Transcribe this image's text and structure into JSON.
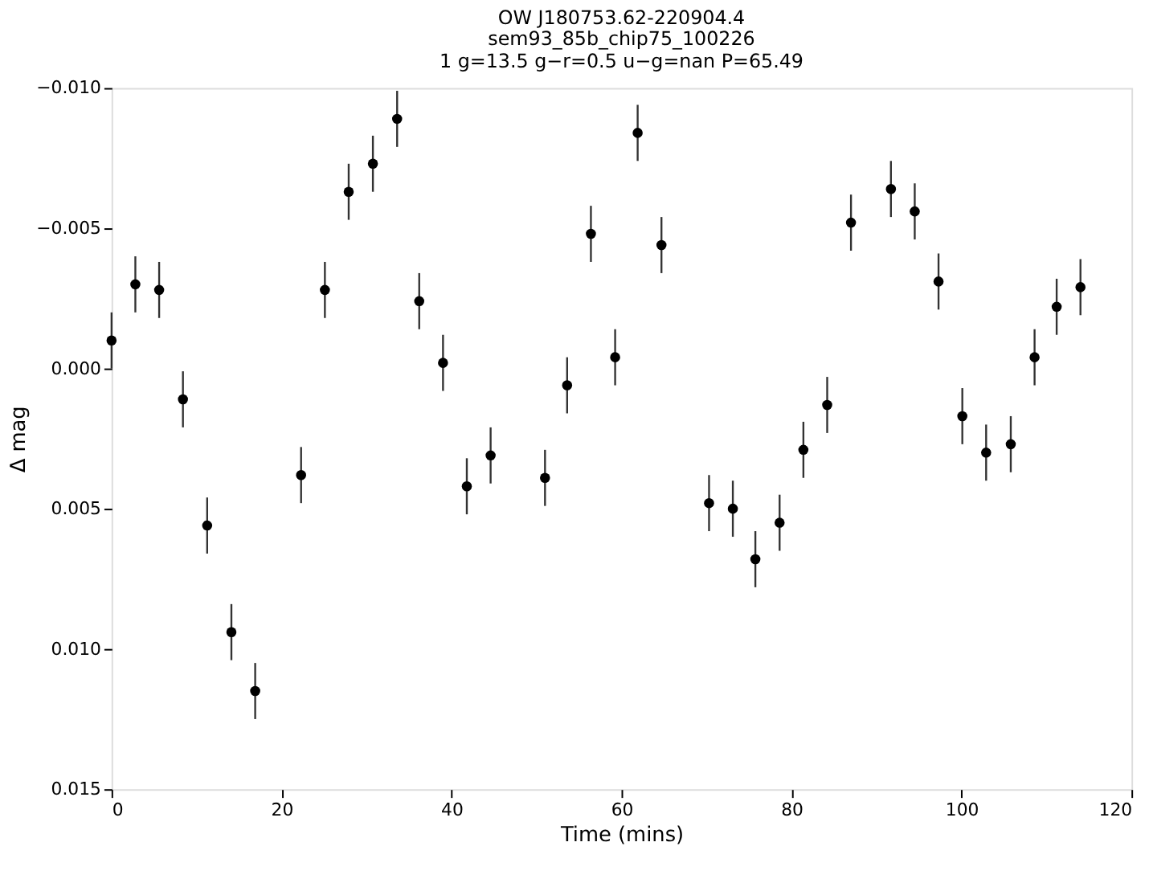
{
  "chart_data": {
    "type": "scatter",
    "title": "OW J180753.62-220904.4",
    "subtitle": "sem93_85b_chip75_100226\n1 g=13.5 g−r=0.5 u−g=nan P=65.49",
    "xlabel": "Time (mins)",
    "ylabel": "Δ mag",
    "x": [
      0,
      2.8,
      5.6,
      8.4,
      11.25,
      14.1,
      16.9,
      22.3,
      25.1,
      27.9,
      30.75,
      33.6,
      36.2,
      39,
      41.8,
      44.6,
      51,
      53.6,
      56.4,
      59.25,
      61.9,
      64.7,
      70.3,
      73.1,
      75.75,
      78.6,
      81.4,
      84.2,
      87,
      91.7,
      94.5,
      97.3,
      100.1,
      102.9,
      105.8,
      108.6,
      111.2,
      114
    ],
    "series": [
      {
        "color": "#000000",
        "values": [
          -0.001,
          -0.003,
          -0.0028,
          0.0011,
          0.0056,
          0.0094,
          0.0115,
          0.0038,
          -0.0028,
          -0.0063,
          -0.0073,
          -0.0089,
          -0.0024,
          -0.0002,
          0.0042,
          0.0031,
          0.0039,
          0.0006,
          -0.0048,
          -0.0004,
          -0.0084,
          -0.0044,
          0.0048,
          0.005,
          0.0068,
          0.0055,
          0.0029,
          0.0013,
          -0.0052,
          -0.0064,
          -0.0056,
          -0.0031,
          0.0017,
          0.003,
          0.0027,
          -0.0004,
          -0.0022,
          -0.0029
        ],
        "errors": [
          0.001,
          0.001,
          0.001,
          0.001,
          0.001,
          0.001,
          0.001,
          0.001,
          0.001,
          0.001,
          0.001,
          0.001,
          0.001,
          0.001,
          0.001,
          0.001,
          0.001,
          0.001,
          0.001,
          0.001,
          0.001,
          0.001,
          0.001,
          0.001,
          0.001,
          0.001,
          0.001,
          0.001,
          0.001,
          0.001,
          0.001,
          0.001,
          0.001,
          0.001,
          0.001,
          0.001,
          0.001,
          0.001
        ]
      }
    ],
    "xlim": [
      0,
      120
    ],
    "xticks": [
      0,
      20,
      40,
      60,
      80,
      100,
      120
    ],
    "ylim": [
      0.015,
      -0.01
    ],
    "yticks": [
      {
        "value": -0.01,
        "label": "−0.010"
      },
      {
        "value": -0.005,
        "label": "−0.005"
      },
      {
        "value": 0,
        "label": "0.000"
      },
      {
        "value": 0.005,
        "label": "0.005"
      },
      {
        "value": 0.01,
        "label": "0.010"
      },
      {
        "value": 0.015,
        "label": "0.015"
      }
    ],
    "grid": false,
    "marker": "circle"
  }
}
